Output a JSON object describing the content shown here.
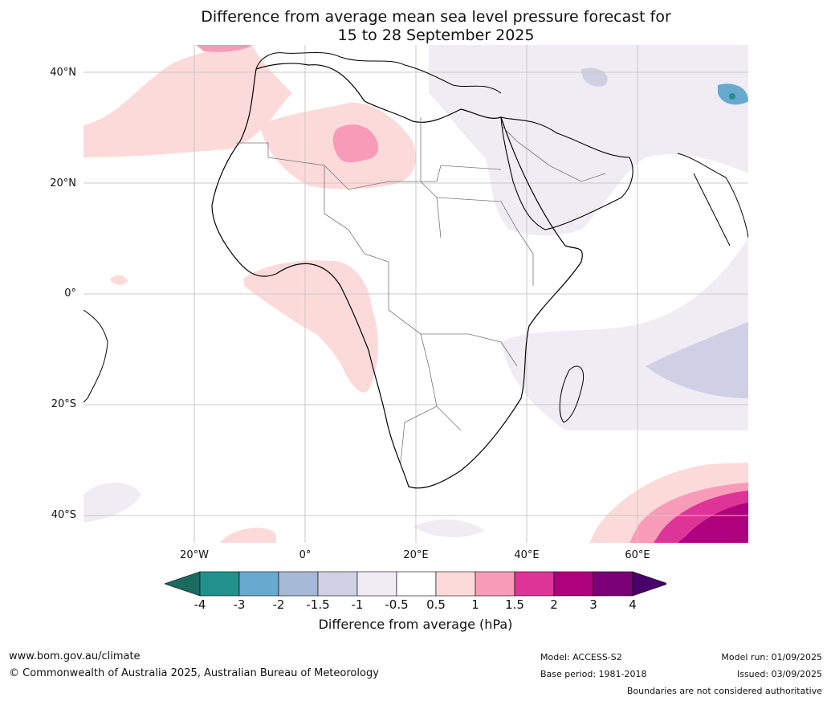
{
  "title_line1": "Difference from average mean sea level pressure forecast for",
  "title_line2": "15 to 28 September 2025",
  "lat_labels": [
    "40°N",
    "20°N",
    "0°",
    "20°S",
    "40°S"
  ],
  "lon_labels": [
    "20°W",
    "0°",
    "20°E",
    "40°E",
    "60°E"
  ],
  "colorbar": {
    "ticks": [
      "-4",
      "-3",
      "-2",
      "-1.5",
      "-1",
      "-0.5",
      "0.5",
      "1",
      "1.5",
      "2",
      "3",
      "4"
    ],
    "colors": [
      "#1b6b61",
      "#21918c",
      "#67a9cf",
      "#a6b9d6",
      "#cfd0e4",
      "#f0ecf4",
      "#ffffff",
      "#fddada",
      "#f89bb8",
      "#dd3497",
      "#ae017e",
      "#7a0177",
      "#49006a"
    ],
    "label": "Difference from average (hPa)"
  },
  "footer": {
    "website": "www.bom.gov.au/climate",
    "copyright": "© Commonwealth of Australia 2025, Australian Bureau of Meteorology",
    "model": "Model: ACCESS-S2",
    "base_period": "Base period: 1981-2018",
    "model_run": "Model run: 01/09/2025",
    "issued": "Issued: 03/09/2025",
    "disclaimer": "Boundaries are not considered authoritative"
  }
}
